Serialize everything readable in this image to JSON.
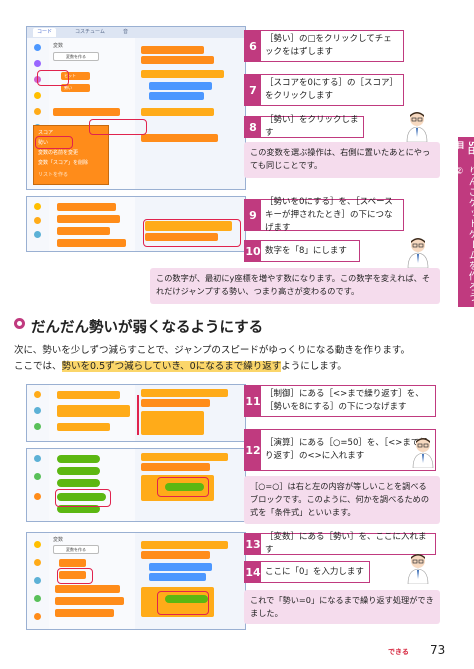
{
  "editor": {
    "tab_code": "コード",
    "tab_costume": "コスチューム",
    "tab_sound": "音",
    "palette_title": "変数",
    "make_var": "変数を作る",
    "categories": [
      "動き",
      "見た目",
      "音",
      "イベント",
      "制御",
      "調べる",
      "演算",
      "変数"
    ],
    "block_hit": "ヒット",
    "block_seiyu": "勢い",
    "block_set_seiyu": "勢い を 0 にする",
    "block_change_seiyu": "勢い を 1 ずつ変える",
    "block_show": "勢い を表示する",
    "block_hide": "勢い を隠す",
    "block_space": "スペース キーが押されたとき",
    "block_score": "スコア を 0 にする",
    "block_repeat": "まで繰り返す",
    "dropdown_items": [
      "スコア",
      "勢い",
      "変数の名前を変更",
      "変数「スコア」を削除"
    ],
    "dropdown_extra": "リストを作る"
  },
  "steps": [
    {
      "num": "6",
      "text": "［勢い］の□をクリックしてチェックをはずします"
    },
    {
      "num": "7",
      "text": "［スコアを0にする］の［スコア］をクリックします"
    },
    {
      "num": "8",
      "text": "［勢い］をクリックします"
    },
    {
      "num": "9",
      "text": "［勢いを0にする］を、［スペースキーが押されたとき］の下につなげます"
    },
    {
      "num": "10",
      "text": "数字を「8」にします"
    },
    {
      "num": "11",
      "text": "［制御］にある［<>まで繰り返す］を、［勢いを8にする］の下につなげます"
    },
    {
      "num": "12",
      "text": "［演算］にある［○=50］を、［<>まで繰り返す］の<>に入れます"
    },
    {
      "num": "13",
      "text": "［変数］にある［勢い］を、ここに入れます"
    },
    {
      "num": "14",
      "text": "ここに「0」を入力します"
    }
  ],
  "notes": {
    "n8": "この変数を選ぶ操作は、右側に置いたあとにやっても同じことです。",
    "n10": "この数字が、最初にy座標を増やす数になります。この数字を変えれば、それだけジャンプする勢い、つまり高さが変わるのです。",
    "n12": "［○=○］は右と左の内容が等しいことを調べるブロックです。このように、何かを調べるための式を「条件式」といいます。",
    "n14": "これで「勢い=0」になるまで繰り返す処理ができました。"
  },
  "side": {
    "day": "5日目",
    "title": "りんごゲットゲームを作ろう②"
  },
  "section": {
    "title": "だんだん勢いが弱くなるようにする",
    "line1": "次に、勢いを少しずつ減らすことで、ジャンプのスピードがゆっくりになる動きを作ります。",
    "line2_pre": "ここでは、",
    "line2_hl": "勢いを0.5ずつ減らしていき、0になるまで繰り返す",
    "line2_post": "ようにします。"
  },
  "footer": {
    "logo": "できる",
    "page": "73"
  }
}
